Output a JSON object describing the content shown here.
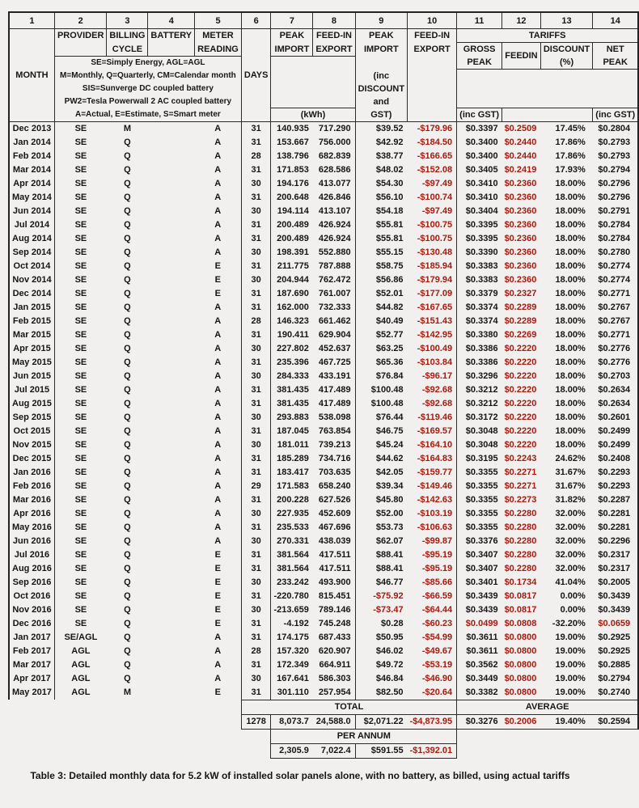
{
  "caption": "Table 3: Detailed monthly data for 5.2 kW of installed solar panels alone, with no battery, as billed, using actual tariffs",
  "colors": {
    "negative_value": "#a41b10",
    "text": "#161616",
    "border": "#2b2b2b",
    "page_background": "#f1f0ee"
  },
  "header": {
    "nums": [
      "1",
      "2",
      "3",
      "4",
      "5",
      "6",
      "7",
      "8",
      "9",
      "10",
      "11",
      "12",
      "13",
      "14"
    ],
    "month": "MONTH",
    "provider": "PROVIDER",
    "billing": [
      "BILLING",
      "CYCLE"
    ],
    "battery": "BATTERY",
    "meter": [
      "METER",
      "READING"
    ],
    "days": "DAYS",
    "peak_import": [
      "PEAK",
      "IMPORT"
    ],
    "feedin_export": [
      "FEED-IN",
      "EXPORT"
    ],
    "peak_import_cost": [
      "PEAK",
      "IMPORT"
    ],
    "feedin_export_cost": [
      "FEED-IN",
      "EXPORT"
    ],
    "kwh": "(kWh)",
    "inc_discount": [
      "(inc",
      "DISCOUNT",
      "and",
      "GST)"
    ],
    "tariffs": "TARIFFS",
    "gross_peak": [
      "GROSS",
      "PEAK"
    ],
    "feedin": "FEEDIN",
    "discount": [
      "DISCOUNT",
      "(%)"
    ],
    "net_peak": [
      "NET",
      "PEAK"
    ],
    "inc_gst": "(inc GST)",
    "legend": [
      "SE=Simply Energy, AGL=AGL",
      "M=Monthly, Q=Quarterly, CM=Calendar month",
      "SIS=Sunverge DC coupled battery",
      "PW2=Tesla Powerwall 2 AC coupled battery",
      "A=Actual, E=Estimate, S=Smart meter"
    ]
  },
  "rows": [
    [
      "Dec 2013",
      "SE",
      "M",
      "",
      "A",
      "31",
      "140.935",
      "717.290",
      "$39.52",
      "-$179.96",
      "$0.3397",
      "$0.2509",
      "17.45%",
      "$0.2804"
    ],
    [
      "Jan 2014",
      "SE",
      "Q",
      "",
      "A",
      "31",
      "153.667",
      "756.000",
      "$42.92",
      "-$184.50",
      "$0.3400",
      "$0.2440",
      "17.86%",
      "$0.2793"
    ],
    [
      "Feb 2014",
      "SE",
      "Q",
      "",
      "A",
      "28",
      "138.796",
      "682.839",
      "$38.77",
      "-$166.65",
      "$0.3400",
      "$0.2440",
      "17.86%",
      "$0.2793"
    ],
    [
      "Mar 2014",
      "SE",
      "Q",
      "",
      "A",
      "31",
      "171.853",
      "628.586",
      "$48.02",
      "-$152.08",
      "$0.3405",
      "$0.2419",
      "17.93%",
      "$0.2794"
    ],
    [
      "Apr 2014",
      "SE",
      "Q",
      "",
      "A",
      "30",
      "194.176",
      "413.077",
      "$54.30",
      "-$97.49",
      "$0.3410",
      "$0.2360",
      "18.00%",
      "$0.2796"
    ],
    [
      "May 2014",
      "SE",
      "Q",
      "",
      "A",
      "31",
      "200.648",
      "426.846",
      "$56.10",
      "-$100.74",
      "$0.3410",
      "$0.2360",
      "18.00%",
      "$0.2796"
    ],
    [
      "Jun 2014",
      "SE",
      "Q",
      "",
      "A",
      "30",
      "194.114",
      "413.107",
      "$54.18",
      "-$97.49",
      "$0.3404",
      "$0.2360",
      "18.00%",
      "$0.2791"
    ],
    [
      "Jul 2014",
      "SE",
      "Q",
      "",
      "A",
      "31",
      "200.489",
      "426.924",
      "$55.81",
      "-$100.75",
      "$0.3395",
      "$0.2360",
      "18.00%",
      "$0.2784"
    ],
    [
      "Aug 2014",
      "SE",
      "Q",
      "",
      "A",
      "31",
      "200.489",
      "426.924",
      "$55.81",
      "-$100.75",
      "$0.3395",
      "$0.2360",
      "18.00%",
      "$0.2784"
    ],
    [
      "Sep 2014",
      "SE",
      "Q",
      "",
      "A",
      "30",
      "198.391",
      "552.880",
      "$55.15",
      "-$130.48",
      "$0.3390",
      "$0.2360",
      "18.00%",
      "$0.2780"
    ],
    [
      "Oct 2014",
      "SE",
      "Q",
      "",
      "E",
      "31",
      "211.775",
      "787.888",
      "$58.75",
      "-$185.94",
      "$0.3383",
      "$0.2360",
      "18.00%",
      "$0.2774"
    ],
    [
      "Nov 2014",
      "SE",
      "Q",
      "",
      "E",
      "30",
      "204.944",
      "762.472",
      "$56.86",
      "-$179.94",
      "$0.3383",
      "$0.2360",
      "18.00%",
      "$0.2774"
    ],
    [
      "Dec 2014",
      "SE",
      "Q",
      "",
      "E",
      "31",
      "187.690",
      "761.007",
      "$52.01",
      "-$177.09",
      "$0.3379",
      "$0.2327",
      "18.00%",
      "$0.2771"
    ],
    [
      "Jan 2015",
      "SE",
      "Q",
      "",
      "A",
      "31",
      "162.000",
      "732.333",
      "$44.82",
      "-$167.65",
      "$0.3374",
      "$0.2289",
      "18.00%",
      "$0.2767"
    ],
    [
      "Feb 2015",
      "SE",
      "Q",
      "",
      "A",
      "28",
      "146.323",
      "661.462",
      "$40.49",
      "-$151.43",
      "$0.3374",
      "$0.2289",
      "18.00%",
      "$0.2767"
    ],
    [
      "Mar 2015",
      "SE",
      "Q",
      "",
      "A",
      "31",
      "190.411",
      "629.904",
      "$52.77",
      "-$142.95",
      "$0.3380",
      "$0.2269",
      "18.00%",
      "$0.2771"
    ],
    [
      "Apr 2015",
      "SE",
      "Q",
      "",
      "A",
      "30",
      "227.802",
      "452.637",
      "$63.25",
      "-$100.49",
      "$0.3386",
      "$0.2220",
      "18.00%",
      "$0.2776"
    ],
    [
      "May 2015",
      "SE",
      "Q",
      "",
      "A",
      "31",
      "235.396",
      "467.725",
      "$65.36",
      "-$103.84",
      "$0.3386",
      "$0.2220",
      "18.00%",
      "$0.2776"
    ],
    [
      "Jun 2015",
      "SE",
      "Q",
      "",
      "A",
      "30",
      "284.333",
      "433.191",
      "$76.84",
      "-$96.17",
      "$0.3296",
      "$0.2220",
      "18.00%",
      "$0.2703"
    ],
    [
      "Jul 2015",
      "SE",
      "Q",
      "",
      "A",
      "31",
      "381.435",
      "417.489",
      "$100.48",
      "-$92.68",
      "$0.3212",
      "$0.2220",
      "18.00%",
      "$0.2634"
    ],
    [
      "Aug 2015",
      "SE",
      "Q",
      "",
      "A",
      "31",
      "381.435",
      "417.489",
      "$100.48",
      "-$92.68",
      "$0.3212",
      "$0.2220",
      "18.00%",
      "$0.2634"
    ],
    [
      "Sep 2015",
      "SE",
      "Q",
      "",
      "A",
      "30",
      "293.883",
      "538.098",
      "$76.44",
      "-$119.46",
      "$0.3172",
      "$0.2220",
      "18.00%",
      "$0.2601"
    ],
    [
      "Oct 2015",
      "SE",
      "Q",
      "",
      "A",
      "31",
      "187.045",
      "763.854",
      "$46.75",
      "-$169.57",
      "$0.3048",
      "$0.2220",
      "18.00%",
      "$0.2499"
    ],
    [
      "Nov 2015",
      "SE",
      "Q",
      "",
      "A",
      "30",
      "181.011",
      "739.213",
      "$45.24",
      "-$164.10",
      "$0.3048",
      "$0.2220",
      "18.00%",
      "$0.2499"
    ],
    [
      "Dec 2015",
      "SE",
      "Q",
      "",
      "A",
      "31",
      "185.289",
      "734.716",
      "$44.62",
      "-$164.83",
      "$0.3195",
      "$0.2243",
      "24.62%",
      "$0.2408"
    ],
    [
      "Jan 2016",
      "SE",
      "Q",
      "",
      "A",
      "31",
      "183.417",
      "703.635",
      "$42.05",
      "-$159.77",
      "$0.3355",
      "$0.2271",
      "31.67%",
      "$0.2293"
    ],
    [
      "Feb 2016",
      "SE",
      "Q",
      "",
      "A",
      "29",
      "171.583",
      "658.240",
      "$39.34",
      "-$149.46",
      "$0.3355",
      "$0.2271",
      "31.67%",
      "$0.2293"
    ],
    [
      "Mar 2016",
      "SE",
      "Q",
      "",
      "A",
      "31",
      "200.228",
      "627.526",
      "$45.80",
      "-$142.63",
      "$0.3355",
      "$0.2273",
      "31.82%",
      "$0.2287"
    ],
    [
      "Apr 2016",
      "SE",
      "Q",
      "",
      "A",
      "30",
      "227.935",
      "452.609",
      "$52.00",
      "-$103.19",
      "$0.3355",
      "$0.2280",
      "32.00%",
      "$0.2281"
    ],
    [
      "May 2016",
      "SE",
      "Q",
      "",
      "A",
      "31",
      "235.533",
      "467.696",
      "$53.73",
      "-$106.63",
      "$0.3355",
      "$0.2280",
      "32.00%",
      "$0.2281"
    ],
    [
      "Jun 2016",
      "SE",
      "Q",
      "",
      "A",
      "30",
      "270.331",
      "438.039",
      "$62.07",
      "-$99.87",
      "$0.3376",
      "$0.2280",
      "32.00%",
      "$0.2296"
    ],
    [
      "Jul 2016",
      "SE",
      "Q",
      "",
      "E",
      "31",
      "381.564",
      "417.511",
      "$88.41",
      "-$95.19",
      "$0.3407",
      "$0.2280",
      "32.00%",
      "$0.2317"
    ],
    [
      "Aug 2016",
      "SE",
      "Q",
      "",
      "E",
      "31",
      "381.564",
      "417.511",
      "$88.41",
      "-$95.19",
      "$0.3407",
      "$0.2280",
      "32.00%",
      "$0.2317"
    ],
    [
      "Sep 2016",
      "SE",
      "Q",
      "",
      "E",
      "30",
      "233.242",
      "493.900",
      "$46.77",
      "-$85.66",
      "$0.3401",
      "$0.1734",
      "41.04%",
      "$0.2005"
    ],
    [
      "Oct 2016",
      "SE",
      "Q",
      "",
      "E",
      "31",
      "-220.780",
      "815.451",
      "-$75.92",
      "-$66.59",
      "$0.3439",
      "$0.0817",
      "0.00%",
      "$0.3439"
    ],
    [
      "Nov 2016",
      "SE",
      "Q",
      "",
      "E",
      "30",
      "-213.659",
      "789.146",
      "-$73.47",
      "-$64.44",
      "$0.3439",
      "$0.0817",
      "0.00%",
      "$0.3439"
    ],
    [
      "Dec 2016",
      "SE",
      "Q",
      "",
      "E",
      "31",
      "-4.192",
      "745.248",
      "$0.28",
      "-$60.23",
      "$0.0499",
      "$0.0808",
      "-32.20%",
      "$0.0659"
    ],
    [
      "Jan 2017",
      "SE/AGL",
      "Q",
      "",
      "A",
      "31",
      "174.175",
      "687.433",
      "$50.95",
      "-$54.99",
      "$0.3611",
      "$0.0800",
      "19.00%",
      "$0.2925"
    ],
    [
      "Feb 2017",
      "AGL",
      "Q",
      "",
      "A",
      "28",
      "157.320",
      "620.907",
      "$46.02",
      "-$49.67",
      "$0.3611",
      "$0.0800",
      "19.00%",
      "$0.2925"
    ],
    [
      "Mar 2017",
      "AGL",
      "Q",
      "",
      "A",
      "31",
      "172.349",
      "664.911",
      "$49.72",
      "-$53.19",
      "$0.3562",
      "$0.0800",
      "19.00%",
      "$0.2885"
    ],
    [
      "Apr 2017",
      "AGL",
      "Q",
      "",
      "A",
      "30",
      "167.641",
      "586.303",
      "$46.84",
      "-$46.90",
      "$0.3449",
      "$0.0800",
      "19.00%",
      "$0.2794"
    ],
    [
      "May 2017",
      "AGL",
      "M",
      "",
      "E",
      "31",
      "301.110",
      "257.954",
      "$82.50",
      "-$20.64",
      "$0.3382",
      "$0.0800",
      "19.00%",
      "$0.2740"
    ]
  ],
  "footer": {
    "total_label": "TOTAL",
    "average_label": "AVERAGE",
    "per_annum_label": "PER ANNUM",
    "days_total": "1278",
    "total_import_kwh": "8,073.7",
    "total_export_kwh": "24,588.0",
    "total_import_cost": "$2,071.22",
    "total_export_cost": "-$4,873.95",
    "avg_gross_peak": "$0.3276",
    "avg_feedin": "$0.2006",
    "avg_discount": "19.40%",
    "avg_net_peak": "$0.2594",
    "per_annum_import_kwh": "2,305.9",
    "per_annum_export_kwh": "7,022.4",
    "per_annum_import_cost": "$591.55",
    "per_annum_export_cost": "-$1,392.01"
  }
}
